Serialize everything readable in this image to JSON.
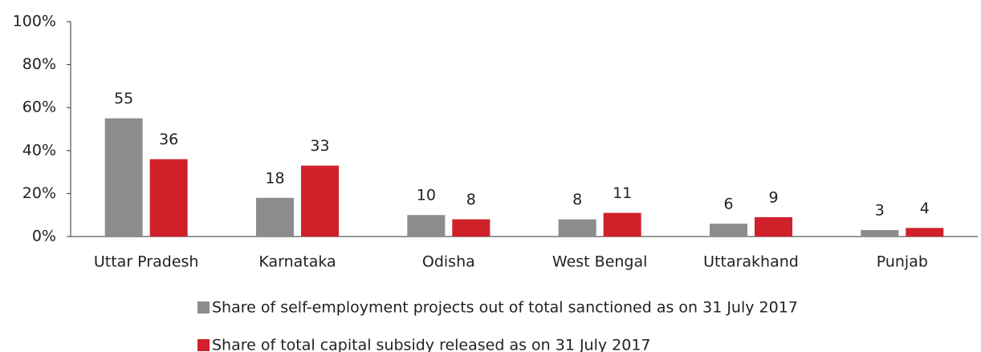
{
  "chart_data": {
    "type": "bar",
    "categories": [
      "Uttar Pradesh",
      "Karnataka",
      "Odisha",
      "West Bengal",
      "Uttarakhand",
      "Punjab"
    ],
    "series": [
      {
        "name": "Share of self-employment projects out of total sanctioned as on 31 July 2017",
        "color": "#8c8c8c",
        "values": [
          55,
          18,
          10,
          8,
          6,
          3
        ]
      },
      {
        "name": "Share of total capital subsidy released as on 31 July 2017",
        "color": "#d0202a",
        "values": [
          36,
          33,
          8,
          11,
          9,
          4
        ]
      }
    ],
    "ylim": [
      0,
      100
    ],
    "yticks": [
      {
        "value": 0,
        "label": "0%"
      },
      {
        "value": 20,
        "label": "20%"
      },
      {
        "value": 40,
        "label": "40%"
      },
      {
        "value": 60,
        "label": "60%"
      },
      {
        "value": 80,
        "label": "80%"
      },
      {
        "value": 100,
        "label": "100%"
      }
    ],
    "grid": false
  }
}
